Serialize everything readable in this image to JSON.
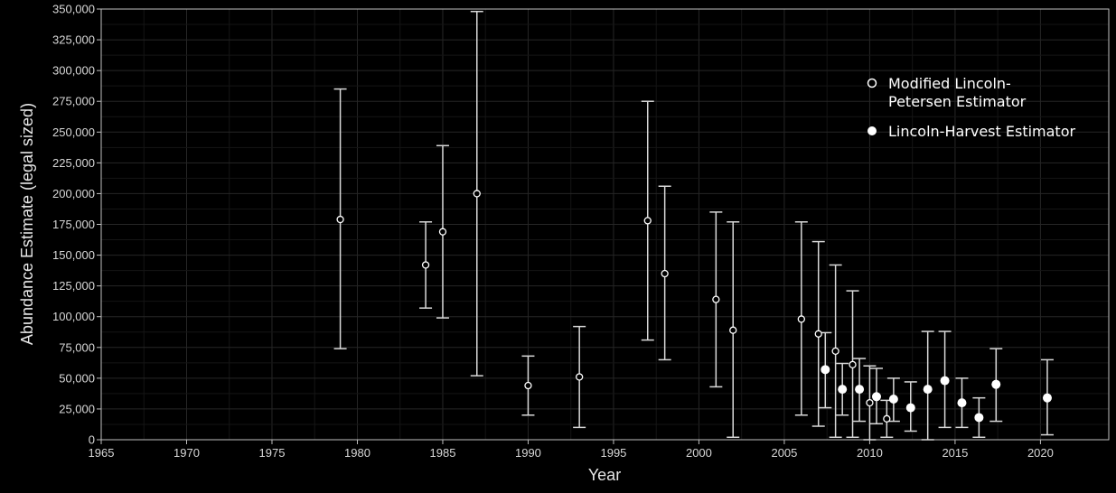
{
  "chart_data": {
    "type": "scatter",
    "title": "",
    "xlabel": "Year",
    "ylabel": "Abundance Estimate (legal sized)",
    "xlim": [
      1965,
      2024
    ],
    "ylim": [
      0,
      350000
    ],
    "x_ticks": [
      1965,
      1970,
      1975,
      1980,
      1985,
      1990,
      1995,
      2000,
      2005,
      2010,
      2015,
      2020
    ],
    "y_ticks": [
      0,
      25000,
      50000,
      75000,
      100000,
      125000,
      150000,
      175000,
      200000,
      225000,
      250000,
      275000,
      300000,
      325000,
      350000
    ],
    "x_tick_labels": [
      "1965",
      "1970",
      "1975",
      "1980",
      "1985",
      "1990",
      "1995",
      "2000",
      "2005",
      "2010",
      "2015",
      "2020"
    ],
    "y_tick_labels": [
      "0",
      "25,000",
      "50,000",
      "75,000",
      "100,000",
      "125,000",
      "150,000",
      "175,000",
      "200,000",
      "225,000",
      "250,000",
      "275,000",
      "300,000",
      "325,000",
      "350,000"
    ],
    "grid": true,
    "legend_position": "top-right",
    "colors": {
      "background": "#000000",
      "points": "#ffffff",
      "error_bars": "#d9d9d9",
      "grid": "#262626",
      "axis": "#bfbfbf"
    },
    "series": [
      {
        "name": "Modified Lincoln-\nPetersen Estimator",
        "legend_lines": [
          "Modified Lincoln-",
          "Petersen Estimator"
        ],
        "marker": "open-circle",
        "points": [
          {
            "x": 1979,
            "y": 179000,
            "lower": 74000,
            "upper": 285000
          },
          {
            "x": 1984,
            "y": 142000,
            "lower": 107000,
            "upper": 177000
          },
          {
            "x": 1985,
            "y": 169000,
            "lower": 99000,
            "upper": 239000
          },
          {
            "x": 1987,
            "y": 200000,
            "lower": 52000,
            "upper": 348000
          },
          {
            "x": 1990,
            "y": 44000,
            "lower": 20000,
            "upper": 68000
          },
          {
            "x": 1993,
            "y": 51000,
            "lower": 10000,
            "upper": 92000
          },
          {
            "x": 1997,
            "y": 178000,
            "lower": 81000,
            "upper": 275000
          },
          {
            "x": 1998,
            "y": 135000,
            "lower": 65000,
            "upper": 206000
          },
          {
            "x": 2001,
            "y": 114000,
            "lower": 43000,
            "upper": 185000
          },
          {
            "x": 2002,
            "y": 89000,
            "lower": 2000,
            "upper": 177000
          },
          {
            "x": 2006,
            "y": 98000,
            "lower": 20000,
            "upper": 177000
          },
          {
            "x": 2007,
            "y": 86000,
            "lower": 11000,
            "upper": 161000
          },
          {
            "x": 2008,
            "y": 72000,
            "lower": 2000,
            "upper": 142000
          },
          {
            "x": 2009,
            "y": 61000,
            "lower": 2000,
            "upper": 121000
          },
          {
            "x": 2010,
            "y": 30000,
            "lower": 0,
            "upper": 60000
          },
          {
            "x": 2011,
            "y": 17000,
            "lower": 2000,
            "upper": 32000
          }
        ]
      },
      {
        "name": "Lincoln-Harvest Estimator",
        "legend_lines": [
          "Lincoln-Harvest Estimator"
        ],
        "marker": "filled-circle",
        "points": [
          {
            "x": 2007.4,
            "y": 57000,
            "lower": 26000,
            "upper": 87000
          },
          {
            "x": 2008.4,
            "y": 41000,
            "lower": 20000,
            "upper": 62000
          },
          {
            "x": 2009.4,
            "y": 41000,
            "lower": 15000,
            "upper": 66000
          },
          {
            "x": 2010.4,
            "y": 35000,
            "lower": 13000,
            "upper": 58000
          },
          {
            "x": 2011.4,
            "y": 33000,
            "lower": 15000,
            "upper": 50000
          },
          {
            "x": 2012.4,
            "y": 26000,
            "lower": 7000,
            "upper": 47000
          },
          {
            "x": 2013.4,
            "y": 41000,
            "lower": 0,
            "upper": 88000
          },
          {
            "x": 2014.4,
            "y": 48000,
            "lower": 10000,
            "upper": 88000
          },
          {
            "x": 2015.4,
            "y": 30000,
            "lower": 10000,
            "upper": 50000
          },
          {
            "x": 2016.4,
            "y": 18000,
            "lower": 2000,
            "upper": 34000
          },
          {
            "x": 2017.4,
            "y": 45000,
            "lower": 15000,
            "upper": 74000
          },
          {
            "x": 2020.4,
            "y": 34000,
            "lower": 4000,
            "upper": 65000
          }
        ]
      }
    ]
  }
}
